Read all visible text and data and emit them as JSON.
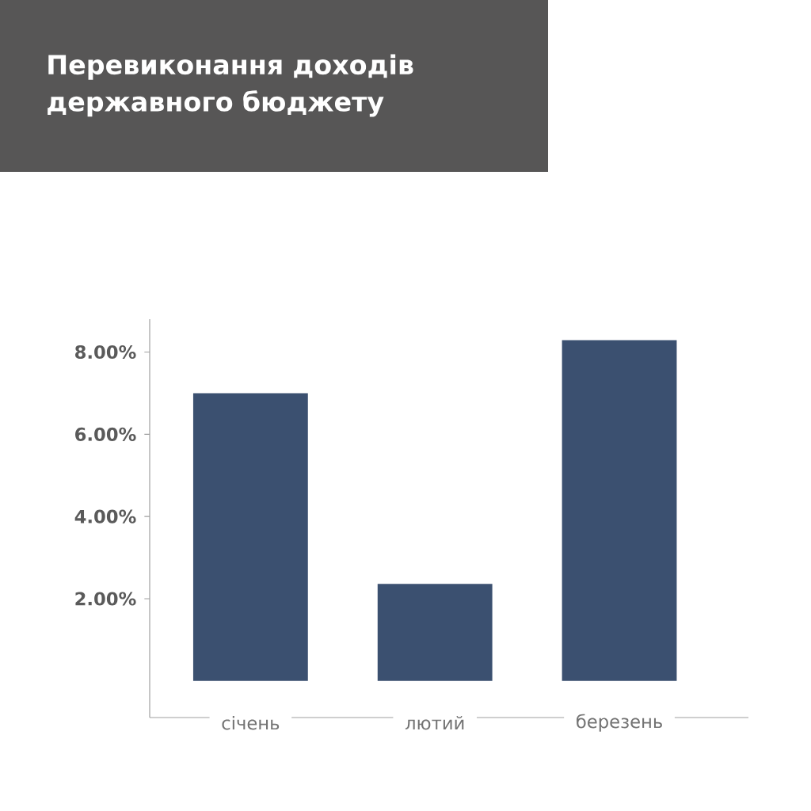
{
  "chart_data": {
    "type": "bar",
    "title": "Перевиконання доходів державного бюджету",
    "categories": [
      "січень",
      "лютий",
      "березень"
    ],
    "values": [
      7.0,
      2.36,
      8.29
    ],
    "color": "#3b5070",
    "ylim": [
      -0.89,
      8.8
    ],
    "yticks": [
      {
        "value": 2,
        "label": "2.00%"
      },
      {
        "value": 4,
        "label": "4.00%"
      },
      {
        "value": 6,
        "label": "6.00%"
      },
      {
        "value": 8,
        "label": "8.00%"
      }
    ],
    "grid": false
  }
}
